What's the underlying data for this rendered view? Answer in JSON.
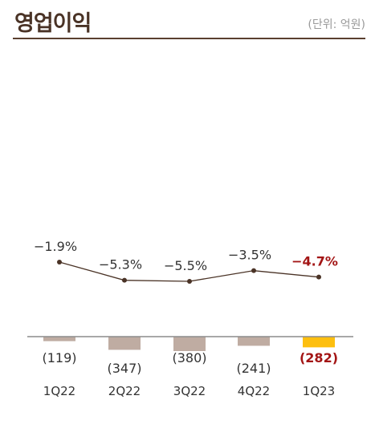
{
  "header": {
    "title": "영업이익",
    "unit": "(단위: 억원)"
  },
  "colors": {
    "title": "#4a3326",
    "rule": "#5a3f2f",
    "line": "#4a3326",
    "bar_default": "#bfaca2",
    "bar_highlight": "#fdbf0f",
    "label_default": "#333333",
    "label_highlight": "#a31515",
    "axis": "#8c8c8c"
  },
  "chart_data": {
    "type": "bar",
    "categories": [
      "1Q22",
      "2Q22",
      "3Q22",
      "4Q22",
      "1Q23"
    ],
    "series": [
      {
        "values": [
          -119,
          -347,
          -380,
          -241,
          -282
        ],
        "labels": [
          "(119)",
          "(347)",
          "(380)",
          "(241)",
          "(282)"
        ]
      },
      {
        "type": "line",
        "values": [
          -1.9,
          -5.3,
          -5.5,
          -3.5,
          -4.7
        ],
        "labels": [
          "−1.9%",
          "−5.3%",
          "−5.5%",
          "−3.5%",
          "−4.7%"
        ]
      }
    ],
    "highlight_index": 4
  }
}
